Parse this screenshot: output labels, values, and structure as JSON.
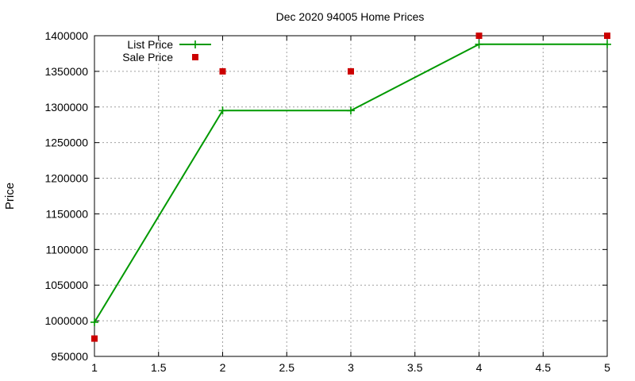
{
  "chart_data": {
    "type": "line",
    "title": "Dec 2020 94005 Home Prices",
    "xlabel": "",
    "ylabel": "Price",
    "xlim": [
      1,
      5
    ],
    "ylim": [
      950000,
      1400000
    ],
    "x_ticks": [
      1,
      1.5,
      2,
      2.5,
      3,
      3.5,
      4,
      4.5,
      5
    ],
    "x_tick_labels": [
      "1",
      "1.5",
      "2",
      "2.5",
      "3",
      "3.5",
      "4",
      "4.5",
      "5"
    ],
    "y_ticks": [
      950000,
      1000000,
      1050000,
      1100000,
      1150000,
      1200000,
      1250000,
      1300000,
      1350000,
      1400000
    ],
    "y_tick_labels": [
      "950000",
      "1000000",
      "1050000",
      "1100000",
      "1150000",
      "1200000",
      "1250000",
      "1300000",
      "1350000",
      "1400000"
    ],
    "grid": true,
    "legend_position": "top-left",
    "series": [
      {
        "name": "List Price",
        "style": "linespoints",
        "color": "#009900",
        "x": [
          1,
          2,
          3,
          4,
          5
        ],
        "values": [
          998000,
          1295000,
          1295000,
          1388000,
          1388000
        ]
      },
      {
        "name": "Sale Price",
        "style": "points",
        "color": "#cc0000",
        "x": [
          1,
          2,
          3,
          4,
          5
        ],
        "values": [
          975000,
          1350000,
          1350000,
          1400000,
          1400000
        ]
      }
    ]
  }
}
